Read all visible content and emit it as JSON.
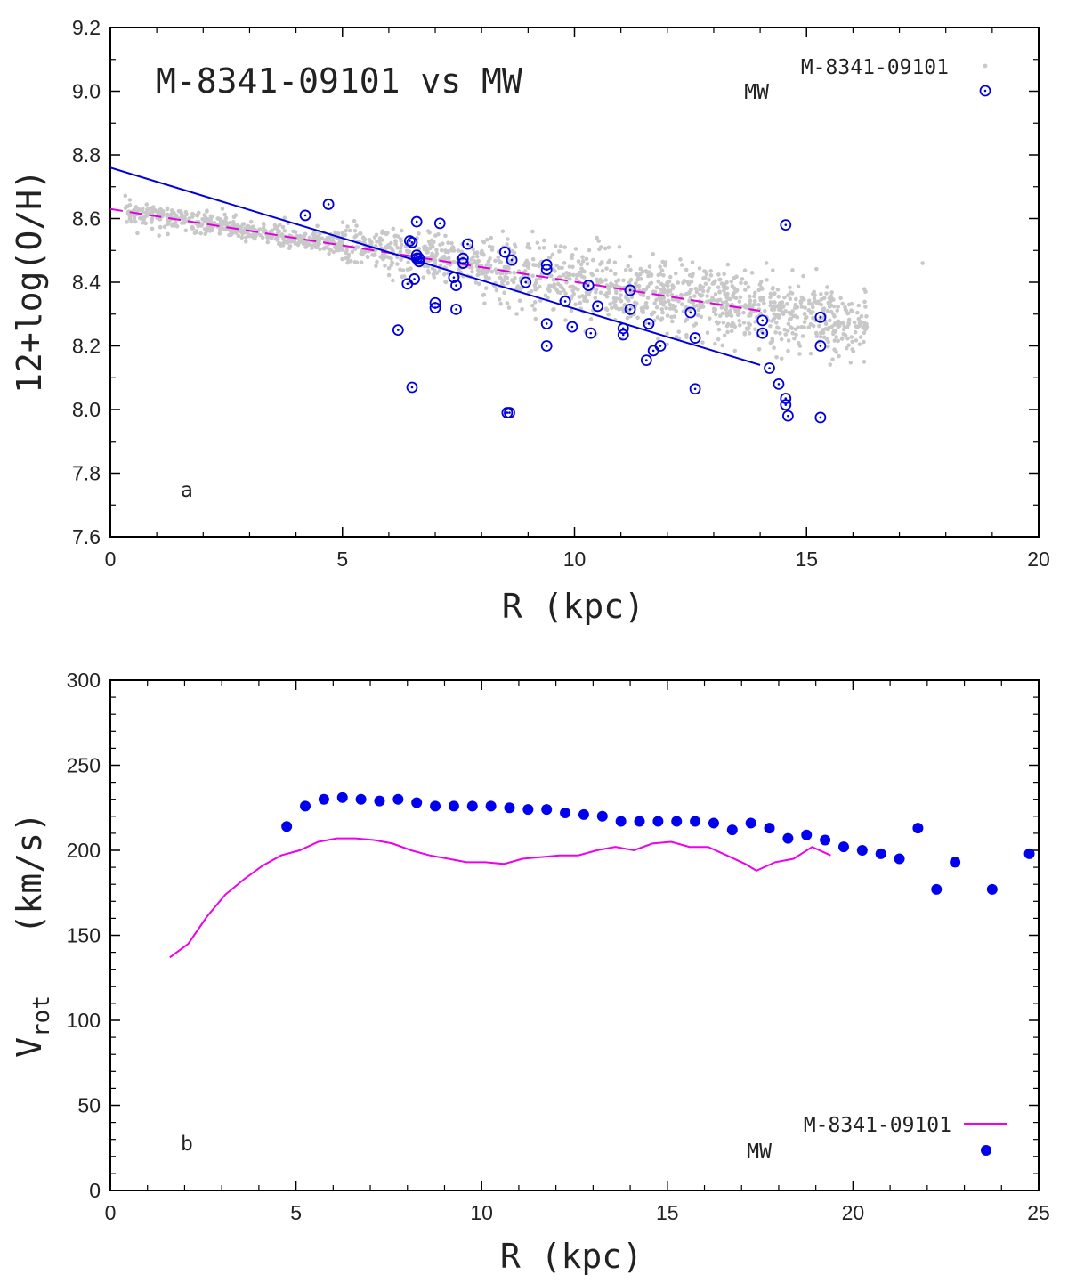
{
  "chart_data": [
    {
      "type": "scatter",
      "title": "M-8341-09101 vs MW",
      "panel_label": "a",
      "xlabel": "R   (kpc)",
      "ylabel": "12+log(O/H)",
      "xlim": [
        0,
        20
      ],
      "ylim": [
        7.6,
        9.2
      ],
      "xticks": [
        0,
        5,
        10,
        15,
        20
      ],
      "yticks": [
        7.6,
        7.8,
        8.0,
        8.2,
        8.4,
        8.6,
        8.8,
        9.0,
        9.2
      ],
      "grid": false,
      "legend_position": "top-right",
      "colors": {
        "galaxy": "#c8c8c8",
        "mw": "#0000dd",
        "galaxy_fit": "#dd00dd",
        "mw_fit": "#0000dd"
      },
      "series": [
        {
          "name": "M-8341-09101",
          "marker": "small-gray-dot",
          "trend": {
            "intercept": 8.63,
            "slope": -0.0226,
            "x_range": [
              0.3,
              16.3
            ],
            "scatter": 0.045
          },
          "x": [
            0.6,
            0.9,
            1.1,
            1.3,
            1.5,
            1.7,
            1.9,
            2.1,
            2.3,
            2.5,
            2.7,
            2.9,
            3.1,
            3.3,
            3.5,
            3.7,
            3.9,
            4.1,
            4.3,
            4.5,
            4.7,
            4.9,
            5.1,
            5.3,
            5.5,
            5.7,
            5.9,
            6.1,
            6.3,
            6.5,
            6.7,
            6.9,
            7.1,
            7.3,
            7.5,
            7.7,
            7.9,
            8.1,
            8.3,
            8.5,
            8.7,
            8.9,
            9.1,
            9.3,
            9.5,
            9.7,
            9.9,
            10.1,
            10.3,
            10.5,
            10.7,
            10.9,
            11.1,
            11.3,
            11.5,
            11.7,
            11.9,
            12.1,
            12.3,
            12.5,
            12.7,
            12.9,
            13.1,
            13.3,
            13.5,
            13.7,
            13.9,
            14.1,
            14.3,
            14.5,
            14.8,
            15.0,
            15.2,
            15.5,
            15.8,
            16.1,
            16.3,
            17.5
          ],
          "y": [
            8.63,
            8.62,
            8.62,
            8.61,
            8.6,
            8.6,
            8.59,
            8.59,
            8.58,
            8.58,
            8.57,
            8.56,
            8.56,
            8.56,
            8.55,
            8.55,
            8.54,
            8.53,
            8.53,
            8.53,
            8.52,
            8.51,
            8.51,
            8.51,
            8.5,
            8.5,
            8.49,
            8.49,
            8.48,
            8.48,
            8.47,
            8.47,
            8.47,
            8.46,
            8.46,
            8.45,
            8.45,
            8.44,
            8.44,
            8.44,
            8.43,
            8.43,
            8.42,
            8.42,
            8.42,
            8.41,
            8.41,
            8.4,
            8.4,
            8.4,
            8.39,
            8.39,
            8.38,
            8.38,
            8.37,
            8.37,
            8.36,
            8.36,
            8.35,
            8.35,
            8.34,
            8.34,
            8.33,
            8.33,
            8.32,
            8.32,
            8.31,
            8.31,
            8.3,
            8.3,
            8.29,
            8.29,
            8.28,
            8.28,
            8.27,
            8.26,
            8.26,
            8.46
          ]
        },
        {
          "name": "MW",
          "marker": "open-circle-with-dot",
          "x": [
            4.2,
            4.7,
            6.2,
            6.4,
            6.45,
            6.5,
            6.5,
            6.55,
            6.6,
            6.6,
            6.6,
            6.65,
            6.65,
            7.0,
            7.0,
            7.1,
            7.4,
            7.45,
            7.45,
            7.6,
            7.6,
            7.7,
            8.5,
            8.55,
            8.6,
            8.65,
            8.95,
            9.4,
            9.4,
            9.4,
            9.4,
            9.8,
            9.95,
            10.3,
            10.35,
            10.5,
            11.05,
            11.05,
            11.2,
            11.2,
            11.55,
            11.6,
            11.7,
            11.85,
            12.5,
            12.6,
            12.6,
            14.05,
            14.05,
            14.2,
            14.4,
            14.55,
            14.55,
            14.55,
            14.6,
            15.3,
            15.3,
            15.3
          ],
          "y": [
            8.61,
            8.645,
            8.25,
            8.395,
            8.53,
            8.525,
            8.07,
            8.41,
            8.59,
            8.485,
            8.475,
            8.465,
            8.475,
            8.335,
            8.32,
            8.585,
            8.415,
            8.39,
            8.315,
            8.475,
            8.46,
            8.52,
            8.495,
            7.99,
            7.99,
            8.47,
            8.4,
            8.455,
            8.44,
            8.27,
            8.2,
            8.34,
            8.26,
            8.39,
            8.24,
            8.325,
            8.255,
            8.235,
            8.375,
            8.315,
            8.155,
            8.27,
            8.185,
            8.2,
            8.305,
            8.225,
            8.065,
            8.28,
            8.24,
            8.13,
            8.08,
            8.58,
            8.035,
            8.015,
            7.98,
            8.29,
            8.2,
            7.975
          ]
        }
      ],
      "fits": [
        {
          "name": "M-8341-09101 fit",
          "style": "dashed",
          "x": [
            0.0,
            14.0
          ],
          "y": [
            8.63,
            8.31
          ]
        },
        {
          "name": "MW fit",
          "style": "solid",
          "x": [
            0.0,
            14.0
          ],
          "y": [
            8.76,
            8.14
          ]
        }
      ]
    },
    {
      "type": "line",
      "panel_label": "b",
      "xlabel": "R   (kpc)",
      "ylabel": {
        "main": "V",
        "subscript": "rot",
        "unit": "   (km/s)"
      },
      "xlim": [
        0,
        25
      ],
      "ylim": [
        0,
        300
      ],
      "xticks": [
        0,
        5,
        10,
        15,
        20,
        25
      ],
      "yticks": [
        0,
        50,
        100,
        150,
        200,
        250,
        300
      ],
      "grid": false,
      "legend_position": "bottom-right",
      "colors": {
        "galaxy": "#ee00ee",
        "mw": "#0000ee"
      },
      "series": [
        {
          "name": "M-8341-09101",
          "marker": "line",
          "x": [
            1.6,
            2.1,
            2.6,
            3.1,
            3.6,
            4.1,
            4.6,
            5.1,
            5.6,
            6.1,
            6.6,
            7.1,
            7.6,
            8.1,
            8.6,
            9.1,
            9.6,
            10.1,
            10.6,
            11.1,
            11.6,
            12.1,
            12.6,
            13.1,
            13.6,
            14.1,
            14.6,
            15.1,
            15.6,
            16.1,
            16.6,
            17.1,
            17.4,
            17.9,
            18.4,
            18.9,
            19.4
          ],
          "y": [
            137,
            145,
            161,
            174,
            183,
            191,
            197,
            200,
            205,
            207,
            207,
            206,
            204,
            200,
            197,
            195,
            193,
            193,
            192,
            195,
            196,
            197,
            197,
            200,
            202,
            200,
            204,
            205,
            202,
            202,
            197,
            192,
            188,
            193,
            195,
            202,
            197
          ]
        },
        {
          "name": "MW",
          "marker": "filled-circle",
          "x": [
            4.75,
            5.25,
            5.75,
            6.25,
            6.75,
            7.25,
            7.75,
            8.25,
            8.75,
            9.25,
            9.75,
            10.25,
            10.75,
            11.25,
            11.75,
            12.25,
            12.75,
            13.25,
            13.75,
            14.25,
            14.75,
            15.25,
            15.75,
            16.25,
            16.75,
            17.25,
            17.75,
            18.25,
            18.75,
            19.25,
            19.75,
            20.25,
            20.75,
            21.25,
            21.75,
            22.25,
            22.75,
            23.75,
            24.75
          ],
          "y": [
            214,
            226,
            230,
            231,
            230,
            229,
            230,
            228,
            226,
            226,
            226,
            226,
            225,
            224,
            224,
            222,
            221,
            220,
            217,
            217,
            217,
            217,
            217,
            216,
            212,
            216,
            213,
            207,
            209,
            206,
            202,
            200,
            198,
            195,
            213,
            177,
            193,
            177,
            198
          ]
        }
      ]
    }
  ]
}
